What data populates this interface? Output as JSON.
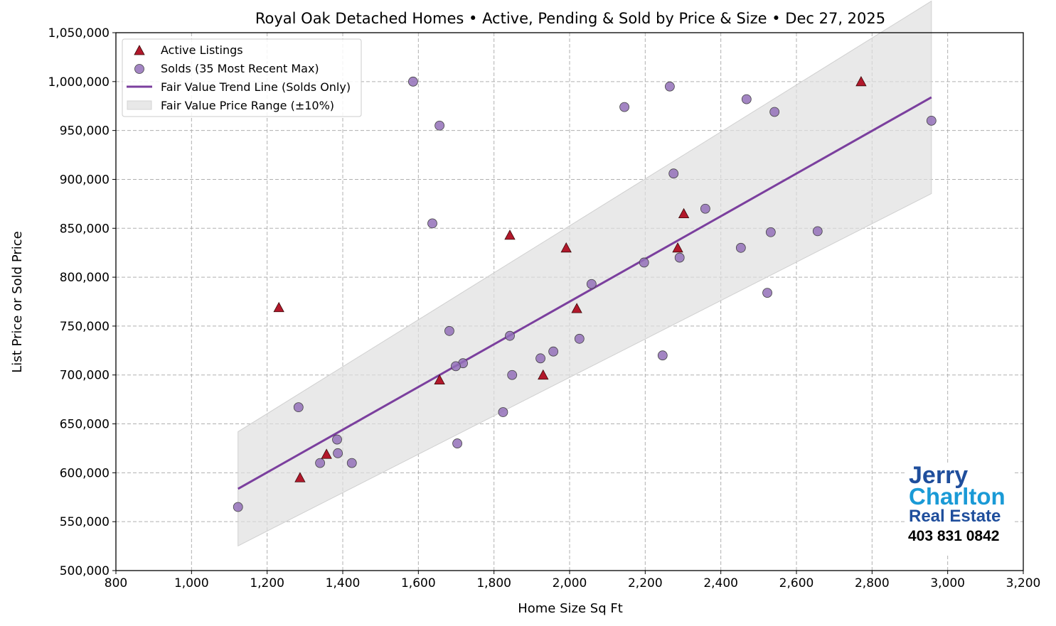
{
  "chart_data": {
    "type": "scatter",
    "title": "Royal Oak Detached Homes • Active, Pending & Sold by Price & Size • Dec 27, 2025",
    "xlabel": "Home Size Sq Ft",
    "ylabel": "List Price or Sold Price",
    "xlim": [
      800,
      3200
    ],
    "ylim": [
      500000,
      1050000
    ],
    "xticks": [
      800,
      1000,
      1200,
      1400,
      1600,
      1800,
      2000,
      2200,
      2400,
      2600,
      2800,
      3000,
      3200
    ],
    "yticks": [
      500000,
      550000,
      600000,
      650000,
      700000,
      750000,
      800000,
      850000,
      900000,
      950000,
      1000000,
      1050000
    ],
    "grid": true,
    "legend_position": "top-left",
    "series": [
      {
        "name": "Active Listings",
        "marker": "triangle",
        "color": "#b2182b",
        "points": [
          [
            1231,
            769000
          ],
          [
            1287,
            595000
          ],
          [
            1357,
            619000
          ],
          [
            1656,
            695000
          ],
          [
            1842,
            843000
          ],
          [
            1991,
            830000
          ],
          [
            2019,
            768000
          ],
          [
            1930,
            700000
          ],
          [
            2286,
            830000
          ],
          [
            2302,
            865000
          ],
          [
            2771,
            1000000
          ]
        ]
      },
      {
        "name": "Solds (35 Most Recent Max)",
        "marker": "circle",
        "color": "#9370b8",
        "points": [
          [
            1123,
            565000
          ],
          [
            1586,
            1000000
          ],
          [
            1656,
            955000
          ],
          [
            1637,
            855000
          ],
          [
            2265,
            995000
          ],
          [
            2145,
            974000
          ],
          [
            2468,
            982000
          ],
          [
            2542,
            969000
          ],
          [
            2957,
            960000
          ],
          [
            2275,
            906000
          ],
          [
            2359,
            870000
          ],
          [
            2532,
            846000
          ],
          [
            2656,
            847000
          ],
          [
            2453,
            830000
          ],
          [
            2291,
            820000
          ],
          [
            2197,
            815000
          ],
          [
            2058,
            793000
          ],
          [
            2523,
            784000
          ],
          [
            1682,
            745000
          ],
          [
            1842,
            740000
          ],
          [
            2026,
            737000
          ],
          [
            1957,
            724000
          ],
          [
            1923,
            717000
          ],
          [
            1718,
            712000
          ],
          [
            1699,
            709000
          ],
          [
            1848,
            700000
          ],
          [
            2246,
            720000
          ],
          [
            1824,
            662000
          ],
          [
            1283,
            667000
          ],
          [
            1385,
            634000
          ],
          [
            1387,
            620000
          ],
          [
            1340,
            610000
          ],
          [
            1424,
            610000
          ],
          [
            1703,
            630000
          ]
        ]
      },
      {
        "name": "Fair Value Trend Line (Solds Only)",
        "type": "line",
        "color": "#7b3f9e",
        "points": [
          [
            1123,
            583600
          ],
          [
            2957,
            983900
          ]
        ]
      },
      {
        "name": "Fair Value Price Range (±10%)",
        "type": "band",
        "color": "#e8e8e8",
        "band_pct": 10
      }
    ]
  },
  "logo": {
    "line1": "Jerry",
    "line2": "Charlton",
    "line3": "Real Estate",
    "phone": "403 831 0842",
    "color_dark": "#1f4e9c",
    "color_light": "#1a9ad6"
  }
}
